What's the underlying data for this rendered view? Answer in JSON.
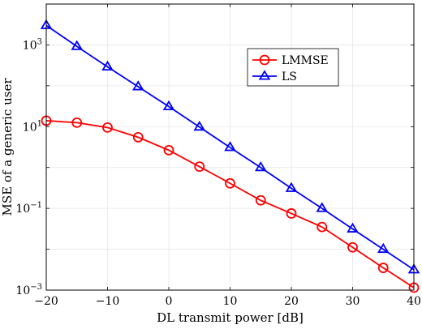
{
  "chart_data": {
    "type": "line",
    "title": "",
    "xlabel": "DL transmit power [dB]",
    "ylabel": "MSE of a generic user",
    "xlim": [
      -20,
      40
    ],
    "ylim": [
      0.001,
      10000
    ],
    "yscale": "log",
    "grid": true,
    "legend_position": "upper-right",
    "x": [
      -20,
      -15,
      -10,
      -5,
      0,
      5,
      10,
      15,
      20,
      25,
      30,
      35,
      40
    ],
    "series": [
      {
        "name": "LMMSE",
        "color": "#ff0000",
        "marker": "circle",
        "values": [
          14.0,
          12.5,
          9.5,
          5.5,
          2.65,
          1.05,
          0.41,
          0.157,
          0.075,
          0.035,
          0.0111,
          0.0035,
          0.00115
        ]
      },
      {
        "name": "LS",
        "color": "#0000ff",
        "marker": "triangle",
        "values": [
          3000,
          920,
          290,
          95,
          31,
          9.8,
          3.1,
          1.0,
          0.31,
          0.1,
          0.0315,
          0.01,
          0.00315
        ]
      }
    ],
    "x_ticks": [
      {
        "value": -20,
        "label": "−20"
      },
      {
        "value": -10,
        "label": "−10"
      },
      {
        "value": 0,
        "label": "0"
      },
      {
        "value": 10,
        "label": "10"
      },
      {
        "value": 20,
        "label": "20"
      },
      {
        "value": 30,
        "label": "30"
      },
      {
        "value": 40,
        "label": "40"
      }
    ],
    "y_ticks": [
      {
        "value": 0.001,
        "base": "10",
        "exp": "−3"
      },
      {
        "value": 0.1,
        "base": "10",
        "exp": "−1"
      },
      {
        "value": 10,
        "base": "10",
        "exp": "1"
      },
      {
        "value": 1000,
        "base": "10",
        "exp": "3"
      }
    ]
  }
}
